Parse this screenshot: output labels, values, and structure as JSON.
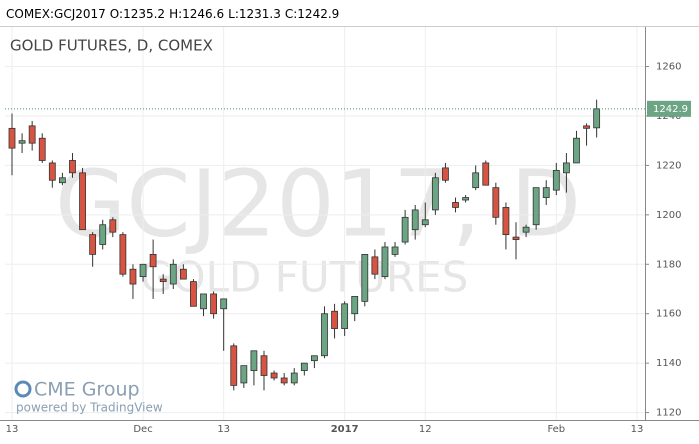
{
  "header": {
    "symbol": "COMEX:GCJ2017",
    "ohlc": [
      {
        "label": "O:",
        "value": 1235.2
      },
      {
        "label": "H:",
        "value": 1246.6
      },
      {
        "label": "L:",
        "value": 1231.3
      },
      {
        "label": "C:",
        "value": 1242.9
      }
    ]
  },
  "watermark": {
    "symbol": "GCJ2017, D",
    "name": "GOLD FUTURES"
  },
  "logo": {
    "brand": "CME Group",
    "credit": "powered by TradingView"
  },
  "chart_data": {
    "type": "candlestick",
    "title": "GOLD FUTURES, D, COMEX",
    "categories": [
      "13",
      null,
      null,
      null,
      null,
      null,
      null,
      null,
      null,
      null,
      null,
      null,
      null,
      "Dec",
      null,
      null,
      null,
      null,
      null,
      null,
      null,
      "13",
      null,
      null,
      null,
      null,
      null,
      null,
      null,
      null,
      null,
      null,
      null,
      "2017",
      null,
      null,
      null,
      null,
      null,
      null,
      null,
      "12",
      null,
      null,
      null,
      null,
      null,
      null,
      null,
      null,
      null,
      null,
      null,
      null,
      "Feb",
      null,
      null,
      null,
      null,
      null,
      null,
      null,
      "13",
      null
    ],
    "open": [
      1235,
      1229,
      1236,
      1231,
      1221,
      1213,
      1222,
      1217,
      1192,
      1188,
      1198,
      1192,
      1178,
      1175,
      1184,
      1174,
      1172,
      1178,
      1173,
      1162,
      1168,
      1162,
      1147,
      1132,
      1137,
      1143,
      1136,
      1134,
      1132,
      1137,
      1141,
      1143,
      1161,
      1154,
      1160,
      1165,
      1183,
      1175,
      1184,
      1189,
      1194,
      1196,
      1202,
      1219,
      1205,
      1206,
      1211,
      1221,
      1211,
      1203,
      1191,
      1193,
      1196,
      1207,
      1210,
      1217,
      1221,
      1236,
      1235.2,
      null,
      null,
      null,
      null,
      null
    ],
    "high": [
      1241,
      1233,
      1238,
      1233,
      1222,
      1217,
      1225,
      1219,
      1193,
      1198,
      1199,
      1193,
      1180,
      1180,
      1190,
      1176,
      1182,
      1180,
      1174,
      1168,
      1169,
      1166,
      1148,
      1139,
      1145,
      1145,
      1137,
      1136,
      1138,
      1140,
      1143,
      1163,
      1164,
      1165,
      1167,
      1184,
      1186,
      1189,
      1189,
      1202,
      1204,
      1205,
      1217,
      1221,
      1207,
      1208,
      1220,
      1222,
      1213,
      1205,
      1197,
      1196,
      1211,
      1214,
      1221,
      1225,
      1234,
      1237,
      1246.6,
      null,
      null,
      null,
      null,
      null
    ],
    "low": [
      1216,
      1225,
      1226,
      1221,
      1211,
      1212,
      1215,
      1194,
      1179,
      1186,
      1191,
      1175,
      1166,
      1173,
      1166,
      1168,
      1170,
      1174,
      1163,
      1159,
      1158,
      1145,
      1129,
      1130,
      1131,
      1129,
      1133,
      1131,
      1131,
      1135,
      1138,
      1142,
      1150,
      1151,
      1157,
      1163,
      1174,
      1174,
      1183,
      1188,
      1190,
      1195,
      1200,
      1213,
      1201,
      1205,
      1210,
      1212,
      1196,
      1186,
      1182,
      1191,
      1194,
      1204,
      1208,
      1209,
      1221,
      1228,
      1231.3,
      null,
      null,
      null,
      null,
      null
    ],
    "close": [
      1227,
      1230,
      1229,
      1222,
      1214,
      1215,
      1217,
      1194,
      1184,
      1196,
      1193,
      1176,
      1172,
      1180,
      1179,
      1173,
      1180,
      1174,
      1163,
      1168,
      1160,
      1166,
      1131,
      1139,
      1145,
      1135,
      1134,
      1132,
      1136,
      1140,
      1143,
      1160,
      1154,
      1164,
      1167,
      1184,
      1176,
      1187,
      1187,
      1199,
      1202,
      1198,
      1215,
      1214,
      1203,
      1207,
      1217,
      1212,
      1199,
      1192,
      1190,
      1195,
      1211,
      1211,
      1218,
      1221,
      1231,
      1235,
      1242.9,
      null,
      null,
      null,
      null,
      null
    ],
    "up_color": "#6ba583",
    "down_color": "#d75442",
    "last_price": 1242.9,
    "last_color": "#6ba583",
    "ylim": [
      1117,
      1276
    ],
    "yticks": [
      1120,
      1140,
      1160,
      1180,
      1200,
      1220,
      1240,
      1260
    ],
    "grid": true
  }
}
